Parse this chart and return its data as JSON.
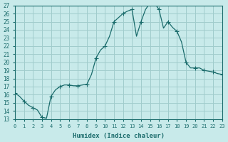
{
  "xlabel": "Humidex (Indice chaleur)",
  "ylabel": "",
  "bg_color": "#c8eaea",
  "grid_color": "#a0cccc",
  "line_color": "#1a6b6b",
  "marker_color": "#1a6b6b",
  "xlim": [
    0,
    23
  ],
  "ylim": [
    13,
    27
  ],
  "yticks": [
    13,
    14,
    15,
    16,
    17,
    18,
    19,
    20,
    21,
    22,
    23,
    24,
    25,
    26,
    27
  ],
  "xticks": [
    0,
    1,
    2,
    3,
    4,
    5,
    6,
    7,
    8,
    9,
    10,
    11,
    12,
    13,
    14,
    15,
    16,
    17,
    18,
    19,
    20,
    21,
    22,
    23
  ],
  "x": [
    0,
    0.5,
    1,
    1.5,
    2,
    2.5,
    3,
    3.5,
    4,
    4.5,
    5,
    5.5,
    6,
    6.5,
    7,
    7.5,
    8,
    8.5,
    9,
    9.5,
    10,
    10.5,
    11,
    11.5,
    12,
    12.5,
    13,
    13.5,
    14,
    14.5,
    15,
    15.2,
    15.5,
    15.8,
    16,
    16.5,
    17,
    17.5,
    18,
    18.5,
    19,
    19.5,
    20,
    20.5,
    21,
    21.5,
    22,
    22.5,
    23
  ],
  "y": [
    16.2,
    15.8,
    15.2,
    14.7,
    14.4,
    14.1,
    13.2,
    13.1,
    15.8,
    16.6,
    17.0,
    17.2,
    17.2,
    17.1,
    17.1,
    17.2,
    17.3,
    18.5,
    20.5,
    21.5,
    22.0,
    23.2,
    25.0,
    25.5,
    26.0,
    26.3,
    26.5,
    23.2,
    25.0,
    26.5,
    27.3,
    27.0,
    27.5,
    26.8,
    26.5,
    24.2,
    25.0,
    24.3,
    23.8,
    22.5,
    20.0,
    19.3,
    19.3,
    19.3,
    19.0,
    18.9,
    18.8,
    18.6,
    18.5
  ],
  "marker_x": [
    0,
    1,
    2,
    3,
    4,
    5,
    6,
    7,
    8,
    9,
    10,
    11,
    12,
    13,
    14,
    15,
    16,
    17,
    18,
    19,
    20,
    21,
    22,
    23
  ],
  "marker_y": [
    16.2,
    15.2,
    14.4,
    13.2,
    15.8,
    17.0,
    17.2,
    17.1,
    17.3,
    20.5,
    22.0,
    25.0,
    26.0,
    26.5,
    25.0,
    27.3,
    26.5,
    25.0,
    23.8,
    20.0,
    19.3,
    19.0,
    18.8,
    18.5
  ]
}
